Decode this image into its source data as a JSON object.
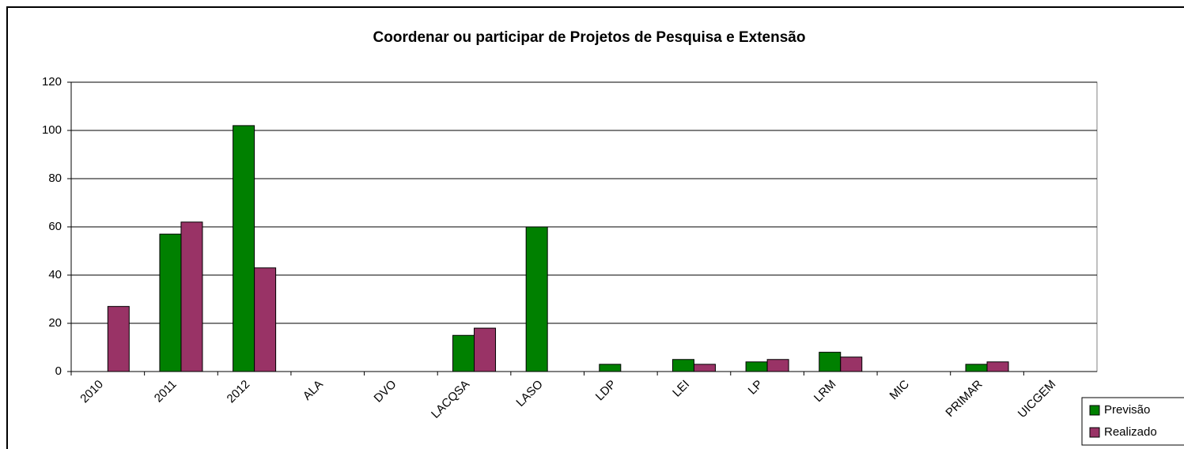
{
  "chart_data": {
    "type": "bar",
    "title": "Coordenar ou participar de Projetos de Pesquisa e Extensão",
    "categories": [
      "2010",
      "2011",
      "2012",
      "ALA",
      "DVO",
      "LACQSA",
      "LASO",
      "LDP",
      "LEI",
      "LP",
      "LRM",
      "MIC",
      "PRIMAR",
      "UICGEM"
    ],
    "series": [
      {
        "name": "Previsão",
        "color": "#008000",
        "values": [
          0,
          57,
          102,
          0,
          0,
          15,
          60,
          3,
          5,
          4,
          8,
          0,
          3,
          0
        ]
      },
      {
        "name": "Realizado",
        "color": "#993366",
        "values": [
          27,
          62,
          43,
          0,
          0,
          18,
          0,
          0,
          3,
          5,
          6,
          0,
          4,
          0
        ]
      }
    ],
    "ylim": [
      0,
      120
    ],
    "yticks": [
      0,
      20,
      40,
      60,
      80,
      100,
      120
    ],
    "grid": true,
    "legend": "bottom-right"
  }
}
